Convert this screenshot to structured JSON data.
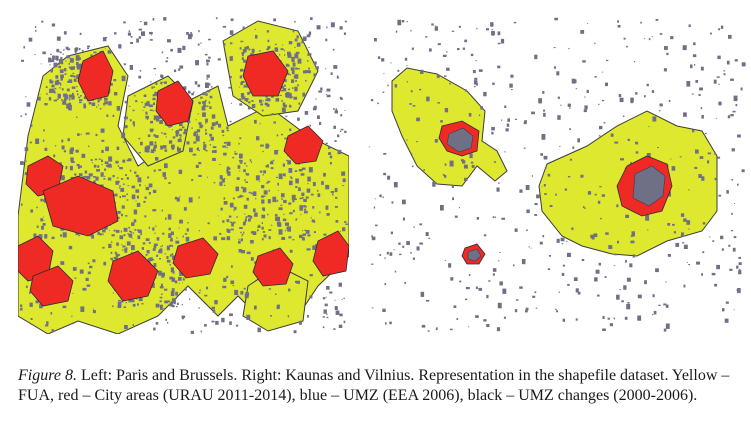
{
  "figure": {
    "label": "Figure 8.",
    "caption": "Left: Paris and Brussels. Right: Kaunas and Vilnius. Representation in the shapefile dataset. Yellow – FUA, red – City areas (URAU 2011-2014), blue – UMZ (EEA 2006), black – UMZ changes (2000-2006)."
  },
  "colors": {
    "fua": "#dde82e",
    "city": "#ef2a24",
    "umz": "#6f6f86",
    "umz_change": "#2b2b2b"
  }
}
